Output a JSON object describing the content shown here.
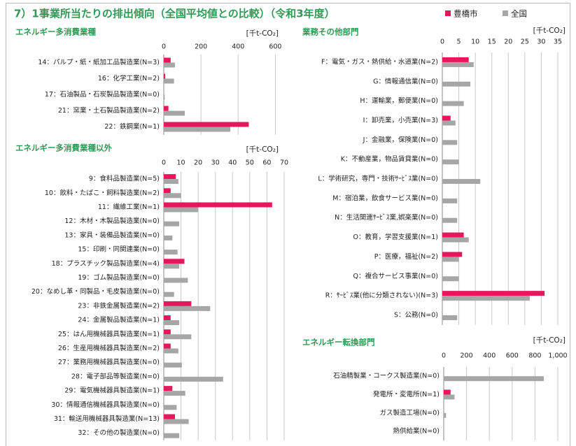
{
  "title": "7）1事業所当たりの排出傾向（全国平均値との比較）（令和3年度）",
  "chart_data": [
    {
      "type": "bar",
      "title": "エネルギー多消費業種",
      "xlabel": "[千t-CO₂]",
      "categories": [
        "14：パルプ・紙・紙加工品製造業(N=3)",
        "16：化学工業(N=2)",
        "17：石油製品・石炭製品製造業(N=0)",
        "21：窯業・土石製品製造業(N=2)",
        "22：鉄鋼業(N=1)"
      ],
      "series": [
        {
          "name": "豊橋市",
          "color": "#e6175c",
          "values": [
            37,
            8,
            0,
            25,
            457
          ]
        },
        {
          "name": "全国",
          "color": "#a6a6a6",
          "values": [
            60,
            55,
            5,
            113,
            358
          ]
        }
      ],
      "xlim": [
        0,
        700
      ],
      "xticks": [
        0,
        200,
        400,
        600
      ],
      "grid": true
    },
    {
      "type": "bar",
      "title": "エネルギー多消費業種以外",
      "xlabel": "[千t-CO₂]",
      "categories": [
        "9：食料品製造業(N=5)",
        "10：飲料・たばこ・飼料製造業(N=2)",
        "11：繊維工業(N=1)",
        "12：木材・木製品製造業(N=0)",
        "13：家具・装備品製造業(N=0)",
        "15：印刷・同関連業(N=0)",
        "18：プラスチック製品製造業(N=4)",
        "19：ゴム製品製造業(N=0)",
        "20：なめし革・同製品・毛皮製造業(N=0)",
        "23：非鉄金属製造業(N=2)",
        "24：金属製品製造業(N=1)",
        "25：はん用機械器具製造業(N=1)",
        "26：生産用機械器具製造業(N=2)",
        "27：業務用機械器具製造業(N=0)",
        "28：電子部品等製造業(N=0)",
        "29：電気機械器具製造業(N=1)",
        "30：情報通信機械器具製造業(N=0)",
        "31：輸送用機械器具製造業(N=13)",
        "32：その他の製造業(N=0)"
      ],
      "series": [
        {
          "name": "豊橋市",
          "color": "#e6175c",
          "values": [
            7,
            4,
            63,
            0,
            0,
            0,
            12,
            0,
            0,
            16,
            4,
            4,
            4,
            0,
            0,
            5,
            0,
            6.5,
            0
          ]
        },
        {
          "name": "全国",
          "color": "#a6a6a6",
          "values": [
            8.5,
            10,
            20,
            9,
            5,
            8,
            9,
            14,
            6,
            27,
            9,
            16,
            8.5,
            10.5,
            34.5,
            12.5,
            7.5,
            14.5,
            9
          ]
        }
      ],
      "xlim": [
        0,
        70
      ],
      "xticks": [
        0,
        10,
        20,
        30,
        40,
        50,
        60,
        70
      ],
      "grid": true
    },
    {
      "type": "bar",
      "title": "業務その他部門",
      "xlabel": "[千t-CO₂]",
      "categories": [
        "F：電気・ガス・熱供給・水道業(N=2)",
        "G：情報通信業(N=0)",
        "H：運輸業，郵便業(N=0)",
        "I：卸売業，小売業(N=3)",
        "J：金融業，保険業(N=0)",
        "K：不動産業，物品賃貸業(N=0)",
        "L：学術研究，専門・技術ｻｰﾋﾞｽ業(N=0)",
        "M：宿泊業，飲食サービス業(N=0)",
        "N：生活関連ｻｰﾋﾞｽ業,娯楽業(N=0)",
        "O：教育，学習支援業(N=1)",
        "P：医療，福祉(N=2)",
        "Q：複合サービス事業(N=0)",
        "R：ｻｰﾋﾞｽ業(他に分類されない)(N=3)",
        "S：公務(N=0)"
      ],
      "series": [
        {
          "name": "豊橋市",
          "color": "#e6175c",
          "values": [
            8,
            0,
            0,
            2.5,
            0,
            0,
            0,
            0,
            0,
            6.5,
            6,
            0,
            31,
            0
          ]
        },
        {
          "name": "全国",
          "color": "#a6a6a6",
          "values": [
            9.5,
            8.5,
            6.5,
            4,
            4.5,
            5,
            11.5,
            4.5,
            4.5,
            8,
            5,
            5,
            26.5,
            4.5
          ]
        }
      ],
      "xlim": [
        0,
        35
      ],
      "xticks": [
        0,
        5,
        10,
        15,
        20,
        25,
        30,
        35
      ],
      "grid": true
    },
    {
      "type": "bar",
      "title": "エネルギー転換部門",
      "xlabel": "[千t-CO₂]",
      "categories": [
        "石油精製業・コークス製造業(N=0)",
        "発電所・変電所(N=1)",
        "ガス製造工場(N=0)",
        "熱供給業(N=0)"
      ],
      "series": [
        {
          "name": "豊橋市",
          "color": "#e6175c",
          "values": [
            0,
            60,
            0,
            0
          ]
        },
        {
          "name": "全国",
          "color": "#a6a6a6",
          "values": [
            877,
            95,
            20,
            0
          ]
        }
      ],
      "xlim": [
        0,
        1000
      ],
      "xticks": [
        0,
        200,
        400,
        600,
        800,
        {
          "value": 1000,
          "label": "1,000"
        }
      ],
      "grid": true
    }
  ]
}
